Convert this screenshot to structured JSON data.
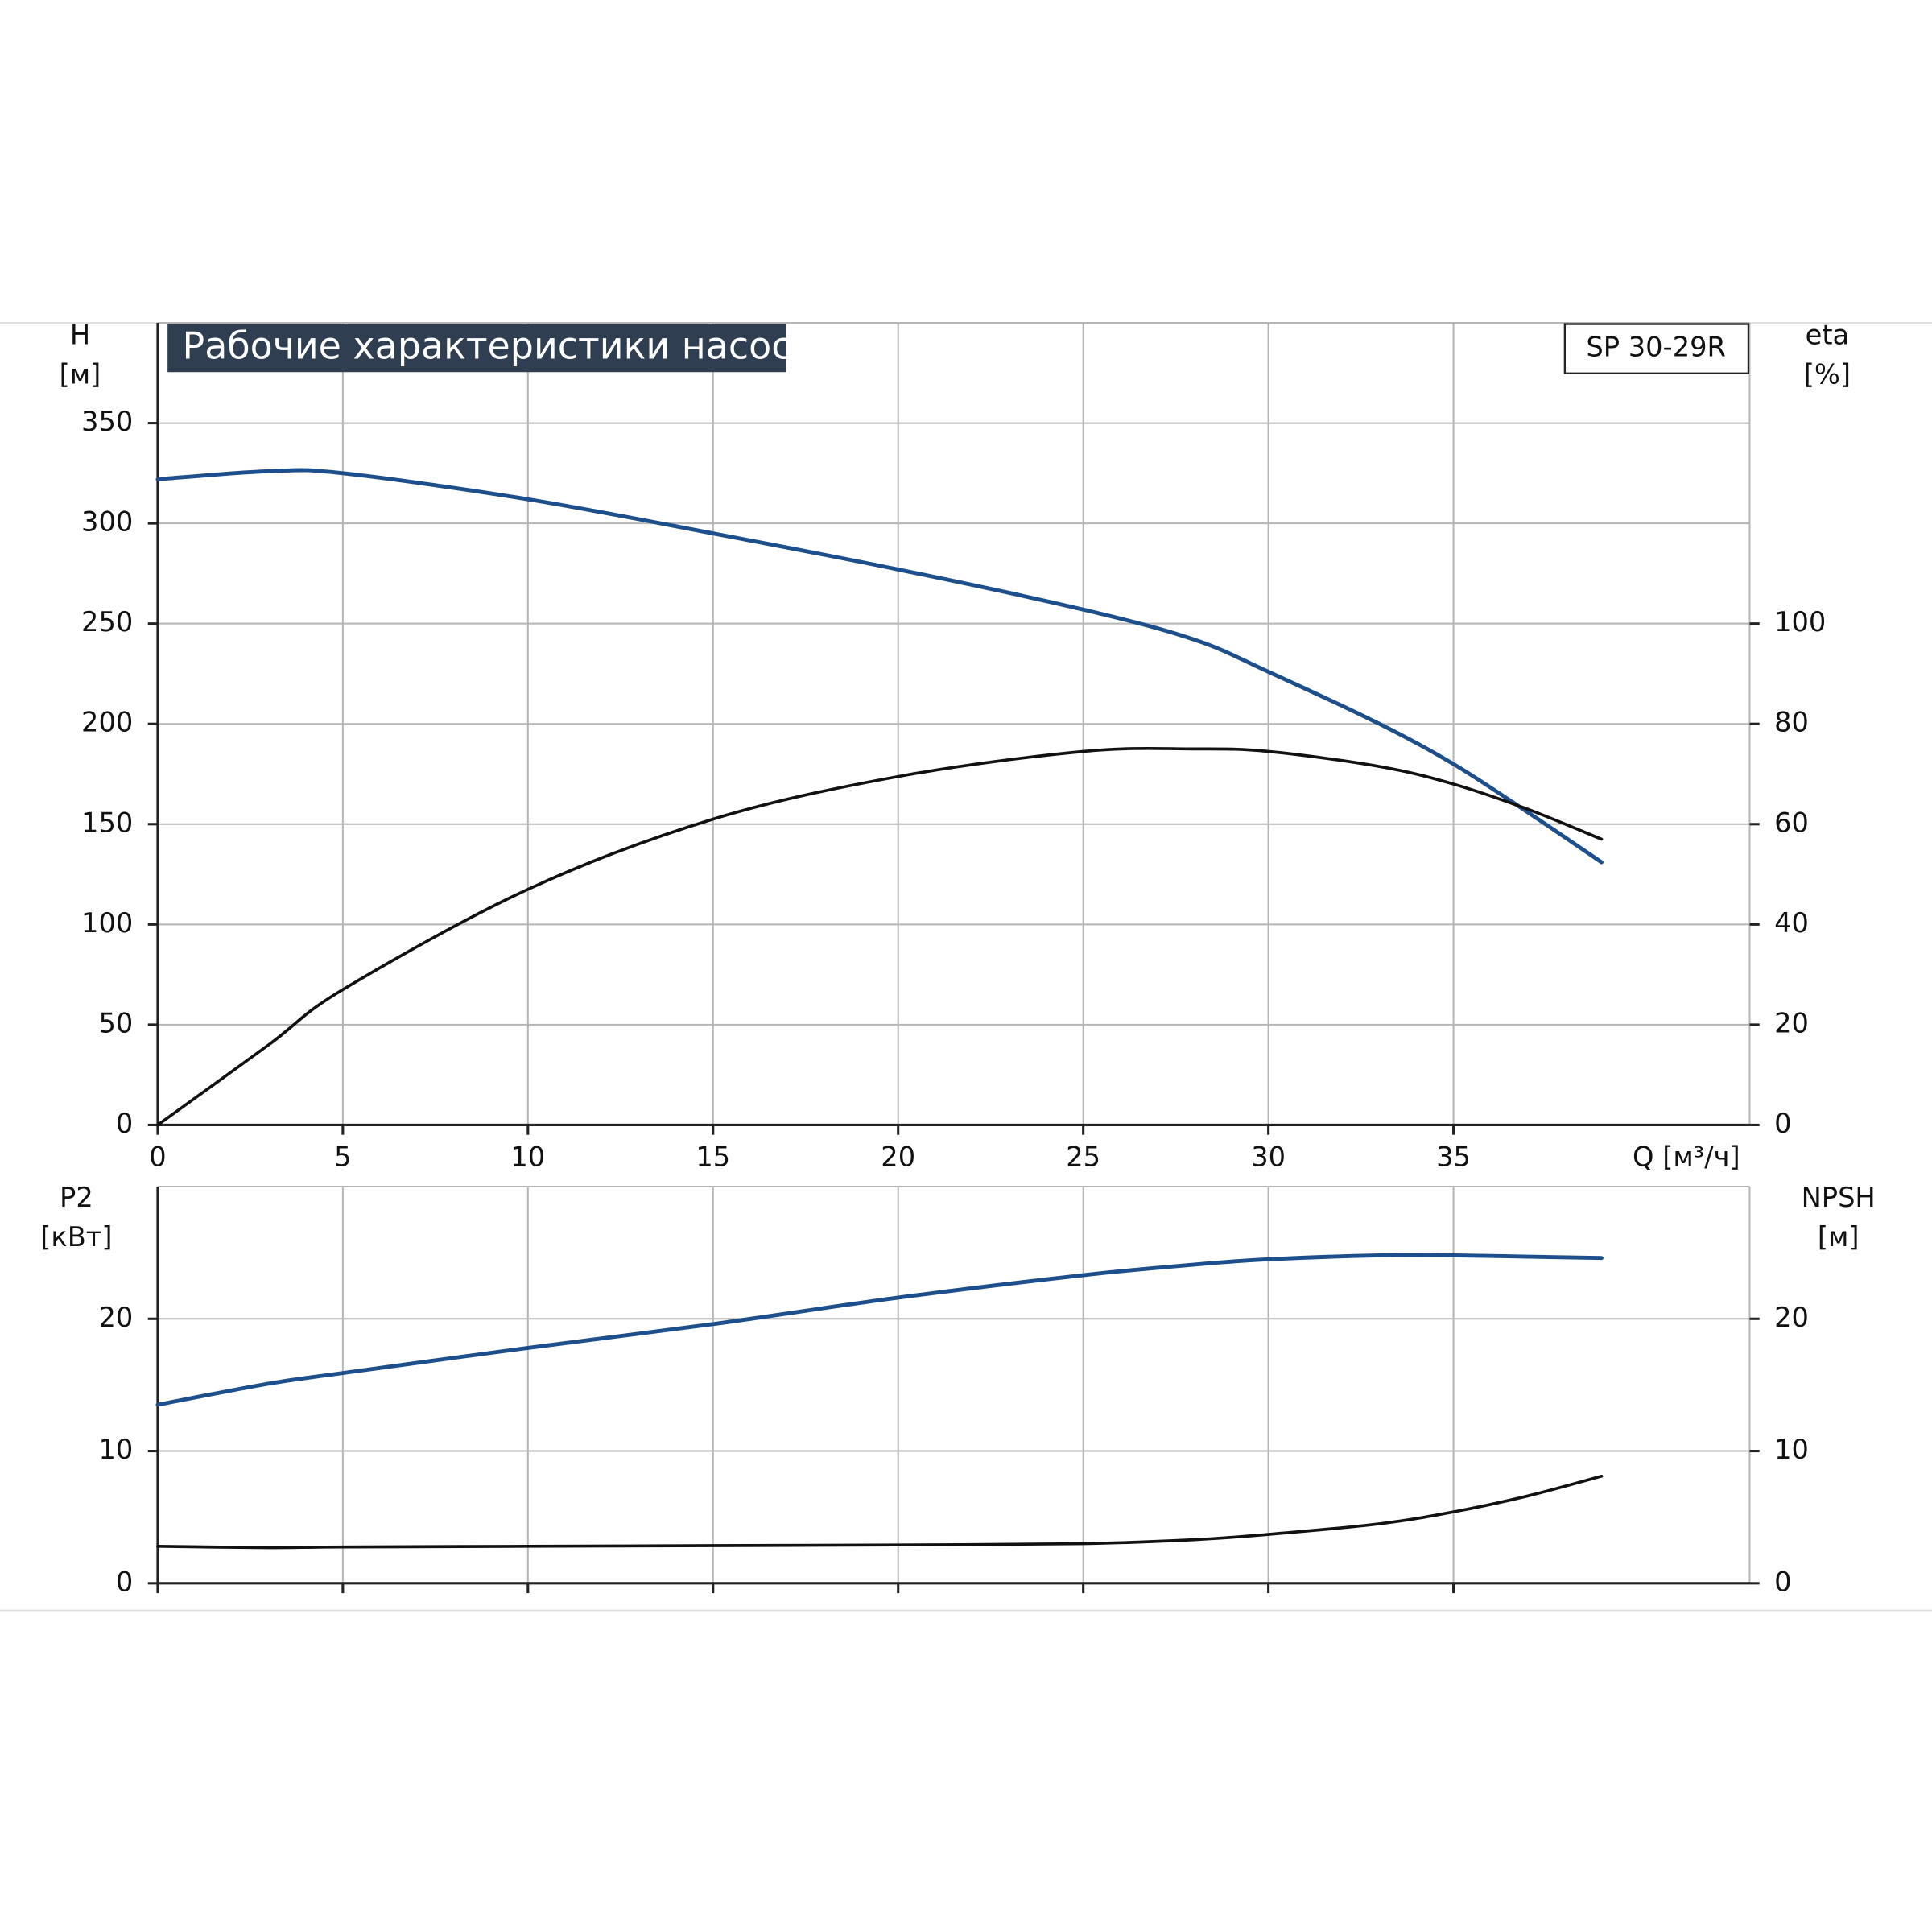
{
  "chart_data": [
    {
      "type": "line",
      "title": "Рабочие характеристики насоса",
      "model": "SP 30-29R",
      "ylabel": [
        "H",
        "[м]"
      ],
      "y2label": [
        "eta",
        "[%]"
      ],
      "xlabel": "Q [м³/ч]",
      "x": [
        0,
        3,
        5,
        10,
        15,
        20,
        25,
        28,
        30,
        33,
        35,
        37,
        39
      ],
      "series": [
        {
          "name": "H",
          "color": "#1d4f8c",
          "values": [
            322,
            326,
            325,
            312,
            295,
            277,
            257,
            242,
            226,
            200,
            180,
            156,
            131
          ]
        },
        {
          "name": "eta",
          "color": "#111111",
          "axis": "y2",
          "values": [
            0,
            16,
            27,
            47,
            61,
            69.5,
            74.5,
            75,
            74.5,
            71.5,
            68,
            63,
            57
          ]
        }
      ],
      "xlim": [
        0,
        43
      ],
      "xticks": [
        0,
        5,
        10,
        15,
        20,
        25,
        30,
        35
      ],
      "ylim": [
        0,
        400
      ],
      "yticks": [
        0,
        50,
        100,
        150,
        200,
        250,
        300,
        350
      ],
      "y2lim": [
        0,
        160
      ],
      "y2ticks": [
        0,
        20,
        40,
        60,
        80,
        100
      ],
      "grid": true
    },
    {
      "type": "line",
      "ylabel": [
        "P2",
        "[кВт]"
      ],
      "y2label": [
        "NPSH",
        "[м]"
      ],
      "x": [
        0,
        3,
        5,
        10,
        15,
        20,
        25,
        28,
        30,
        33,
        35,
        37,
        39
      ],
      "series": [
        {
          "name": "P2",
          "color": "#1d4f8c",
          "values": [
            13.5,
            15.1,
            15.9,
            17.8,
            19.6,
            21.6,
            23.3,
            24.1,
            24.5,
            24.8,
            24.8,
            24.7,
            24.6
          ]
        },
        {
          "name": "NPSH",
          "color": "#111111",
          "axis": "y2",
          "values": [
            2.8,
            2.7,
            2.75,
            2.8,
            2.85,
            2.9,
            3.0,
            3.3,
            3.7,
            4.5,
            5.4,
            6.6,
            8.1
          ]
        }
      ],
      "xlim": [
        0,
        43
      ],
      "xticks": [
        0,
        5,
        10,
        15,
        20,
        25,
        30,
        35
      ],
      "ylim": [
        0,
        30
      ],
      "yticks": [
        0,
        10,
        20
      ],
      "y2lim": [
        0,
        30
      ],
      "y2ticks": [
        0,
        10,
        20
      ],
      "grid": true
    }
  ]
}
